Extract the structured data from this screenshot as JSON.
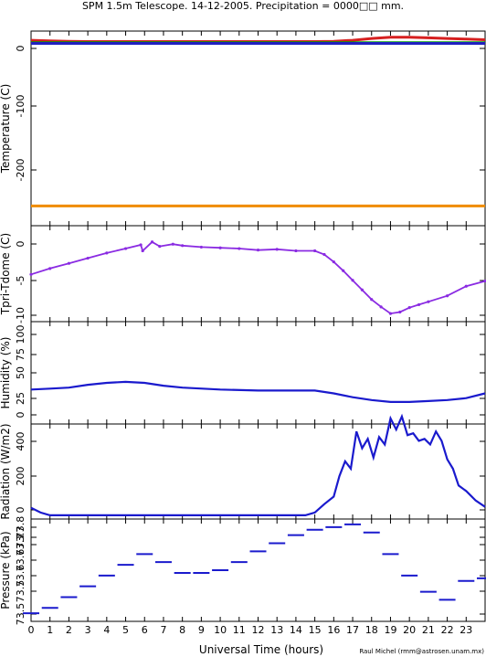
{
  "title": "SPM 1.5m Telescope. 14-12-2005. Precipitation = 0000□□ mm.",
  "xlabel": "Universal Time (hours)",
  "credit": "Raul Michel (rmm@astrosen.unam.mx)",
  "x_ticks": [
    "0",
    "1",
    "2",
    "3",
    "4",
    "5",
    "6",
    "7",
    "8",
    "9",
    "10",
    "11",
    "12",
    "13",
    "14",
    "15",
    "16",
    "17",
    "18",
    "19",
    "20",
    "21",
    "22",
    "23"
  ],
  "colors": {
    "red": "#d62020",
    "green": "#00a000",
    "blue_line": "#2020c0",
    "orange": "#f08c00",
    "purple": "#8a2be2",
    "navy": "#1a1acd"
  },
  "chart_data": [
    {
      "type": "line",
      "ylabel": "Temperature (C)",
      "xlim": [
        0,
        24
      ],
      "ylim": [
        -300,
        15
      ],
      "y_ticks": [
        "0",
        "-100",
        "-200"
      ],
      "series": [
        {
          "color": "red",
          "x": [
            0,
            1,
            2,
            3,
            5,
            8,
            12,
            15,
            16,
            17,
            18,
            19,
            20,
            21,
            22,
            23,
            24
          ],
          "values": [
            0,
            -1,
            -1.5,
            -2,
            -2,
            -2,
            -2,
            -2,
            -1.5,
            0,
            3,
            5,
            5,
            4,
            3,
            2,
            1
          ]
        },
        {
          "color": "green",
          "x": [
            0,
            24
          ],
          "values": [
            -4,
            -4
          ]
        },
        {
          "color": "blue_line",
          "x": [
            0,
            24
          ],
          "values": [
            -5,
            -5
          ]
        },
        {
          "color": "orange",
          "x": [
            0,
            24
          ],
          "values": [
            -268,
            -268
          ]
        }
      ]
    },
    {
      "type": "scatter",
      "ylabel": "Tpri-Tdome (C)",
      "xlim": [
        0,
        24
      ],
      "ylim": [
        -10.5,
        2.5
      ],
      "y_ticks": [
        "0",
        "-5",
        "-10"
      ],
      "series": [
        {
          "color": "purple",
          "x": [
            0,
            1,
            2,
            3,
            4,
            5,
            5.8,
            5.9,
            6.4,
            6.8,
            7.5,
            8,
            9,
            10,
            11,
            12,
            13,
            14,
            15,
            15.5,
            16,
            16.5,
            17,
            17.5,
            18,
            18.5,
            19,
            19.5,
            20,
            20.5,
            21,
            22,
            23,
            24
          ],
          "values": [
            -4.1,
            -3.3,
            -2.6,
            -1.9,
            -1.2,
            -0.6,
            -0.1,
            -0.9,
            0.3,
            -0.3,
            0,
            -0.2,
            -0.4,
            -0.5,
            -0.6,
            -0.8,
            -0.7,
            -0.9,
            -0.9,
            -1.4,
            -2.4,
            -3.6,
            -4.9,
            -6.2,
            -7.5,
            -8.5,
            -9.4,
            -9.2,
            -8.6,
            -8.2,
            -7.8,
            -7.0,
            -5.7,
            -5.0
          ]
        }
      ]
    },
    {
      "type": "line",
      "ylabel": "Humidity (%)",
      "xlim": [
        0,
        24
      ],
      "ylim": [
        -5,
        102
      ],
      "y_ticks": [
        "0",
        "25",
        "50",
        "75",
        "100"
      ],
      "series": [
        {
          "color": "navy",
          "x": [
            0,
            1,
            2,
            3,
            4,
            5,
            6,
            7,
            8,
            10,
            12,
            15,
            16,
            17,
            18,
            19,
            20,
            21,
            22,
            23,
            24
          ],
          "values": [
            31,
            32,
            33,
            36,
            38,
            39,
            38,
            35,
            33,
            31,
            30,
            30,
            27,
            23,
            20,
            18,
            18,
            19,
            20,
            22,
            27
          ]
        }
      ]
    },
    {
      "type": "line",
      "ylabel": "Radiation (W/m2)",
      "xlim": [
        0,
        24
      ],
      "ylim": [
        -20,
        490
      ],
      "y_ticks": [
        "0",
        "200",
        "400"
      ],
      "series": [
        {
          "color": "navy",
          "x": [
            0,
            0.5,
            1,
            5,
            10,
            14.5,
            15,
            15.5,
            16,
            16.3,
            16.6,
            16.9,
            17.2,
            17.5,
            17.8,
            18.1,
            18.4,
            18.7,
            19,
            19.3,
            19.6,
            19.9,
            20.2,
            20.5,
            20.8,
            21.1,
            21.4,
            21.7,
            22,
            22.3,
            22.6,
            23,
            23.5,
            24
          ],
          "values": [
            40,
            15,
            0,
            0,
            0,
            0,
            15,
            60,
            100,
            210,
            290,
            250,
            450,
            360,
            410,
            310,
            420,
            380,
            520,
            460,
            530,
            430,
            440,
            400,
            410,
            380,
            450,
            400,
            300,
            250,
            160,
            130,
            80,
            45
          ]
        }
      ]
    },
    {
      "type": "scatter",
      "ylabel": "Pressure (kPa)",
      "xlim": [
        0,
        24
      ],
      "ylim": [
        73.44,
        73.82
      ],
      "y_ticks": [
        "73.5",
        "73.5",
        "73.6",
        "73.6",
        "73.7",
        "73.7",
        "73.8"
      ],
      "series": [
        {
          "color": "navy",
          "x": [
            0,
            1,
            2,
            3,
            4,
            5,
            6,
            7,
            8,
            9,
            10,
            11,
            12,
            13,
            14,
            15,
            16,
            17,
            18,
            19,
            20,
            21,
            22,
            23,
            24
          ],
          "values": [
            73.47,
            73.49,
            73.53,
            73.57,
            73.61,
            73.65,
            73.69,
            73.66,
            73.62,
            73.62,
            73.63,
            73.66,
            73.7,
            73.73,
            73.76,
            73.78,
            73.79,
            73.8,
            73.77,
            73.69,
            73.61,
            73.55,
            73.52,
            73.59,
            73.6
          ]
        }
      ]
    }
  ]
}
